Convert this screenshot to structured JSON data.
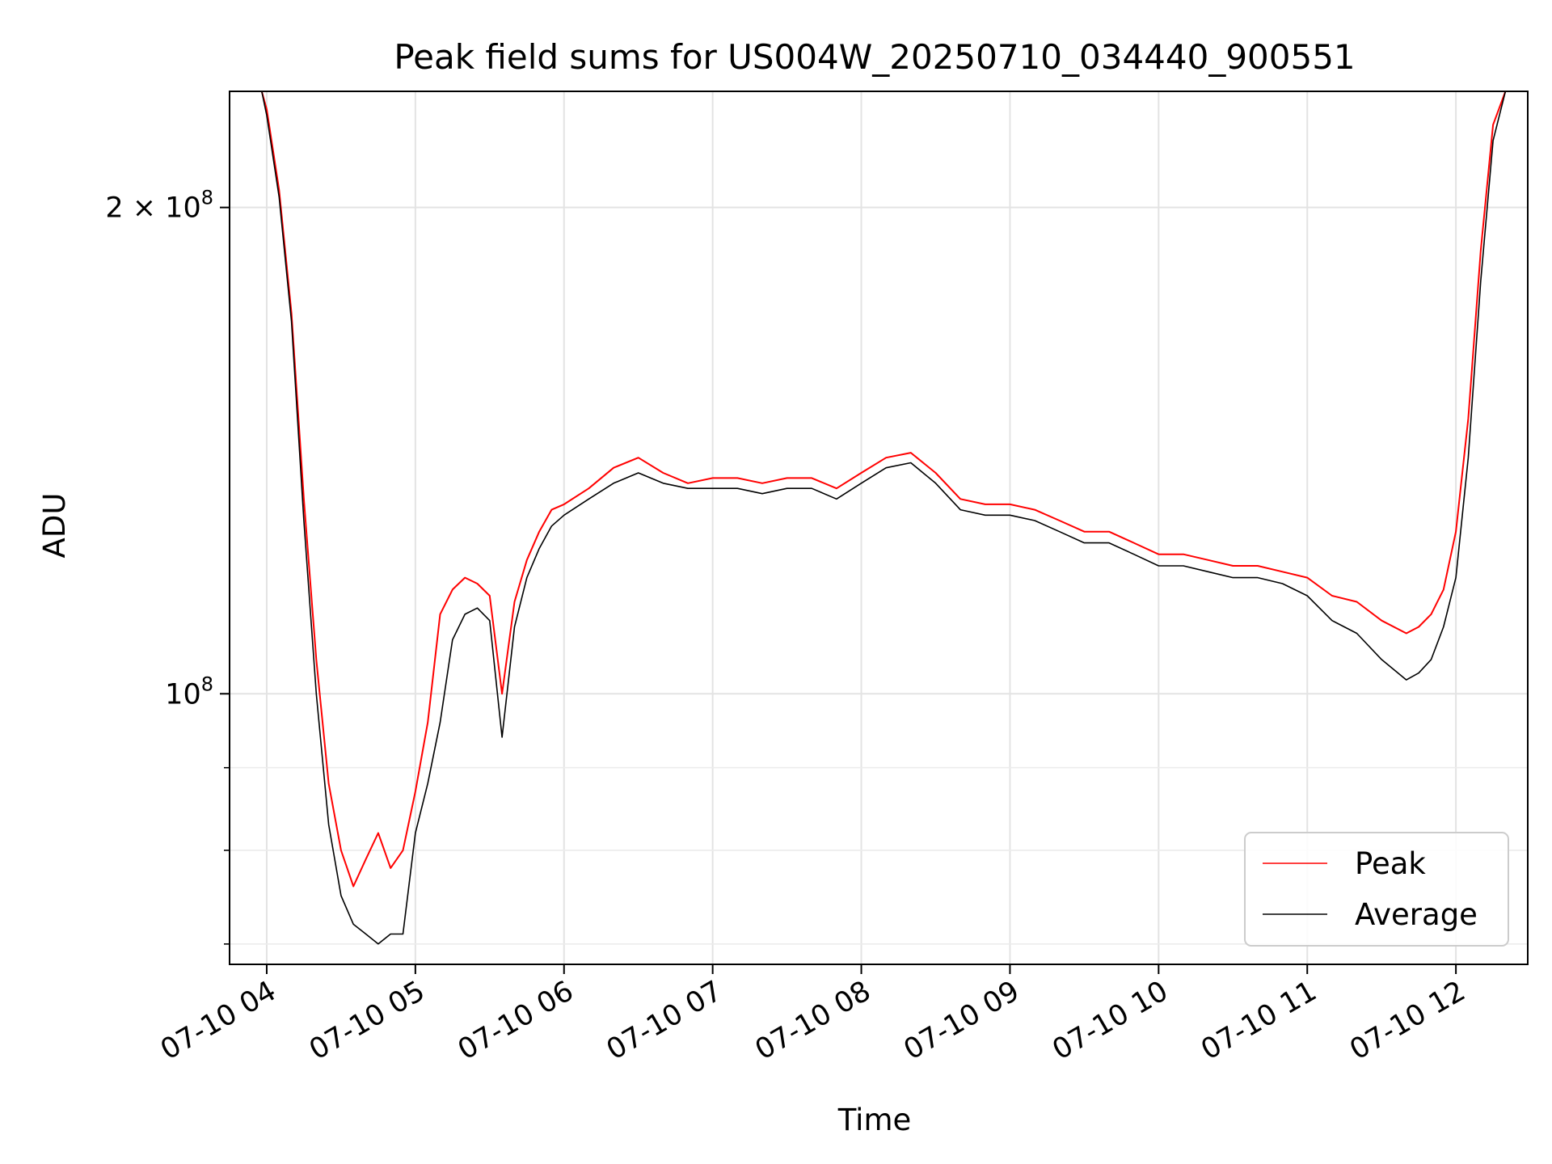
{
  "chart_data": {
    "type": "line",
    "title": "Peak field sums for US004W_20250710_034440_900551",
    "xlabel": "Time",
    "ylabel": "ADU",
    "x_scale": "time",
    "y_scale": "log",
    "xlim": [
      "2025-07-10 03:45",
      "2025-07-10 12:29"
    ],
    "ylim": [
      68000000,
      236000000
    ],
    "grid": true,
    "legend_position": "lower-right",
    "x_ticks": [
      {
        "value": "2025-07-10 04:00",
        "label": "07-10 04"
      },
      {
        "value": "2025-07-10 05:00",
        "label": "07-10 05"
      },
      {
        "value": "2025-07-10 06:00",
        "label": "07-10 06"
      },
      {
        "value": "2025-07-10 07:00",
        "label": "07-10 07"
      },
      {
        "value": "2025-07-10 08:00",
        "label": "07-10 08"
      },
      {
        "value": "2025-07-10 09:00",
        "label": "07-10 09"
      },
      {
        "value": "2025-07-10 10:00",
        "label": "07-10 10"
      },
      {
        "value": "2025-07-10 11:00",
        "label": "07-10 11"
      },
      {
        "value": "2025-07-10 12:00",
        "label": "07-10 12"
      }
    ],
    "y_ticks_major": [
      {
        "value": 100000000,
        "label_base": "10",
        "label_exp": "8"
      },
      {
        "value": 200000000,
        "label_base": "2 × 10",
        "label_exp": "8"
      }
    ],
    "y_ticks_minor": [
      70000000,
      80000000,
      90000000,
      300000000
    ],
    "series": [
      {
        "name": "Peak",
        "color": "#ff0000",
        "x": [
          "2025-07-10 03:58",
          "2025-07-10 04:00",
          "2025-07-10 04:05",
          "2025-07-10 04:10",
          "2025-07-10 04:15",
          "2025-07-10 04:20",
          "2025-07-10 04:25",
          "2025-07-10 04:30",
          "2025-07-10 04:35",
          "2025-07-10 04:40",
          "2025-07-10 04:45",
          "2025-07-10 04:50",
          "2025-07-10 04:55",
          "2025-07-10 05:00",
          "2025-07-10 05:05",
          "2025-07-10 05:10",
          "2025-07-10 05:15",
          "2025-07-10 05:20",
          "2025-07-10 05:25",
          "2025-07-10 05:30",
          "2025-07-10 05:35",
          "2025-07-10 05:40",
          "2025-07-10 05:45",
          "2025-07-10 05:50",
          "2025-07-10 05:55",
          "2025-07-10 06:00",
          "2025-07-10 06:10",
          "2025-07-10 06:20",
          "2025-07-10 06:30",
          "2025-07-10 06:40",
          "2025-07-10 06:50",
          "2025-07-10 07:00",
          "2025-07-10 07:10",
          "2025-07-10 07:20",
          "2025-07-10 07:30",
          "2025-07-10 07:40",
          "2025-07-10 07:50",
          "2025-07-10 08:00",
          "2025-07-10 08:10",
          "2025-07-10 08:20",
          "2025-07-10 08:30",
          "2025-07-10 08:40",
          "2025-07-10 08:50",
          "2025-07-10 09:00",
          "2025-07-10 09:10",
          "2025-07-10 09:20",
          "2025-07-10 09:30",
          "2025-07-10 09:40",
          "2025-07-10 09:50",
          "2025-07-10 10:00",
          "2025-07-10 10:10",
          "2025-07-10 10:20",
          "2025-07-10 10:30",
          "2025-07-10 10:40",
          "2025-07-10 10:50",
          "2025-07-10 11:00",
          "2025-07-10 11:10",
          "2025-07-10 11:20",
          "2025-07-10 11:30",
          "2025-07-10 11:40",
          "2025-07-10 11:45",
          "2025-07-10 11:50",
          "2025-07-10 11:55",
          "2025-07-10 12:00",
          "2025-07-10 12:05",
          "2025-07-10 12:10",
          "2025-07-10 12:15",
          "2025-07-10 12:20",
          "2025-07-10 12:22"
        ],
        "values": [
          236000000,
          230000000,
          205000000,
          172000000,
          132000000,
          105000000,
          88000000,
          80000000,
          76000000,
          79000000,
          82000000,
          78000000,
          80000000,
          87000000,
          96000000,
          112000000,
          116000000,
          118000000,
          117000000,
          115000000,
          100000000,
          114000000,
          121000000,
          126000000,
          130000000,
          131000000,
          134000000,
          138000000,
          140000000,
          137000000,
          135000000,
          136000000,
          136000000,
          135000000,
          136000000,
          136000000,
          134000000,
          137000000,
          140000000,
          141000000,
          137000000,
          132000000,
          131000000,
          131000000,
          130000000,
          128000000,
          126000000,
          126000000,
          124000000,
          122000000,
          122000000,
          121000000,
          120000000,
          120000000,
          119000000,
          118000000,
          115000000,
          114000000,
          111000000,
          109000000,
          110000000,
          112000000,
          116000000,
          126000000,
          148000000,
          188000000,
          225000000,
          236000000,
          236000000
        ]
      },
      {
        "name": "Average",
        "color": "#000000",
        "x": [
          "2025-07-10 03:58",
          "2025-07-10 04:00",
          "2025-07-10 04:05",
          "2025-07-10 04:10",
          "2025-07-10 04:15",
          "2025-07-10 04:20",
          "2025-07-10 04:25",
          "2025-07-10 04:30",
          "2025-07-10 04:35",
          "2025-07-10 04:40",
          "2025-07-10 04:45",
          "2025-07-10 04:50",
          "2025-07-10 04:55",
          "2025-07-10 05:00",
          "2025-07-10 05:05",
          "2025-07-10 05:10",
          "2025-07-10 05:15",
          "2025-07-10 05:20",
          "2025-07-10 05:25",
          "2025-07-10 05:30",
          "2025-07-10 05:35",
          "2025-07-10 05:40",
          "2025-07-10 05:45",
          "2025-07-10 05:50",
          "2025-07-10 05:55",
          "2025-07-10 06:00",
          "2025-07-10 06:10",
          "2025-07-10 06:20",
          "2025-07-10 06:30",
          "2025-07-10 06:40",
          "2025-07-10 06:50",
          "2025-07-10 07:00",
          "2025-07-10 07:10",
          "2025-07-10 07:20",
          "2025-07-10 07:30",
          "2025-07-10 07:40",
          "2025-07-10 07:50",
          "2025-07-10 08:00",
          "2025-07-10 08:10",
          "2025-07-10 08:20",
          "2025-07-10 08:30",
          "2025-07-10 08:40",
          "2025-07-10 08:50",
          "2025-07-10 09:00",
          "2025-07-10 09:10",
          "2025-07-10 09:20",
          "2025-07-10 09:30",
          "2025-07-10 09:40",
          "2025-07-10 09:50",
          "2025-07-10 10:00",
          "2025-07-10 10:10",
          "2025-07-10 10:20",
          "2025-07-10 10:30",
          "2025-07-10 10:40",
          "2025-07-10 10:50",
          "2025-07-10 11:00",
          "2025-07-10 11:10",
          "2025-07-10 11:20",
          "2025-07-10 11:30",
          "2025-07-10 11:40",
          "2025-07-10 11:45",
          "2025-07-10 11:50",
          "2025-07-10 11:55",
          "2025-07-10 12:00",
          "2025-07-10 12:05",
          "2025-07-10 12:10",
          "2025-07-10 12:15",
          "2025-07-10 12:20",
          "2025-07-10 12:22"
        ],
        "values": [
          236000000,
          228000000,
          203000000,
          170000000,
          128000000,
          100000000,
          83000000,
          75000000,
          72000000,
          71000000,
          70000000,
          71000000,
          71000000,
          82000000,
          88000000,
          96000000,
          108000000,
          112000000,
          113000000,
          111000000,
          94000000,
          110000000,
          118000000,
          123000000,
          127000000,
          129000000,
          132000000,
          135000000,
          137000000,
          135000000,
          134000000,
          134000000,
          134000000,
          133000000,
          134000000,
          134000000,
          132000000,
          135000000,
          138000000,
          139000000,
          135000000,
          130000000,
          129000000,
          129000000,
          128000000,
          126000000,
          124000000,
          124000000,
          122000000,
          120000000,
          120000000,
          119000000,
          118000000,
          118000000,
          117000000,
          115000000,
          111000000,
          109000000,
          105000000,
          102000000,
          103000000,
          105000000,
          110000000,
          118000000,
          140000000,
          180000000,
          220000000,
          236000000,
          236000000
        ]
      }
    ]
  }
}
